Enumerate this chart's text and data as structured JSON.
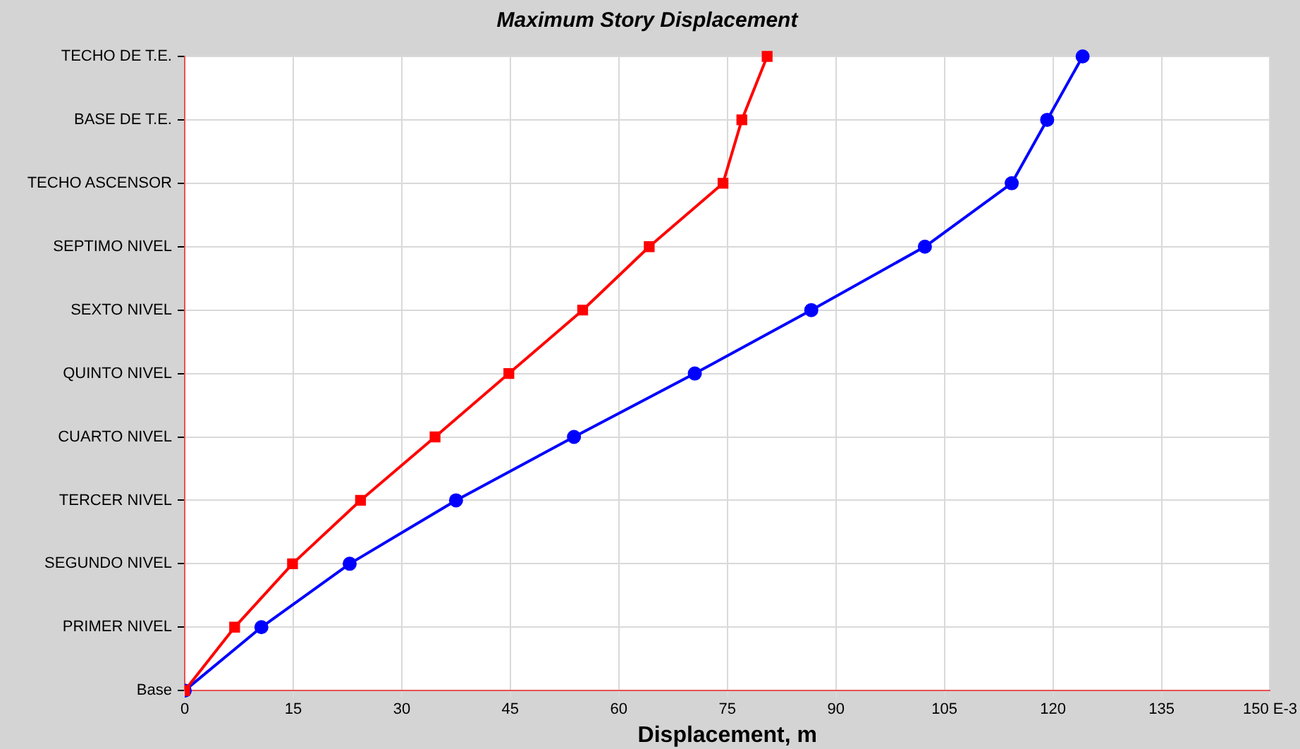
{
  "chart_data": {
    "type": "line",
    "orientation": "horizontal",
    "title": "Maximum Story Displacement",
    "xlabel": "Displacement, m",
    "xlim": [
      0,
      150
    ],
    "xticks": [
      0,
      15,
      30,
      45,
      60,
      75,
      90,
      105,
      120,
      135,
      {
        "value": 150,
        "label": "150 E-3"
      }
    ],
    "categories": [
      "TECHO DE T.E.",
      "BASE DE T.E.",
      "TECHO ASCENSOR",
      "SEPTIMO NIVEL",
      "SEXTO NIVEL",
      "QUINTO NIVEL",
      "CUARTO NIVEL",
      "TERCER NIVEL",
      "SEGUNDO NIVEL",
      "PRIMER NIVEL",
      "Base"
    ],
    "grid": true,
    "line_style": "solid",
    "series": [
      {
        "color": "#ff0000",
        "marker": "square",
        "values": [
          80.5,
          77.0,
          74.4,
          64.2,
          55.0,
          44.8,
          34.6,
          24.3,
          14.9,
          6.9,
          0
        ]
      },
      {
        "color": "#0000ff",
        "marker": "circle",
        "values": [
          124.1,
          119.2,
          114.3,
          102.3,
          86.6,
          70.5,
          53.8,
          37.5,
          22.8,
          10.6,
          0
        ]
      }
    ]
  }
}
